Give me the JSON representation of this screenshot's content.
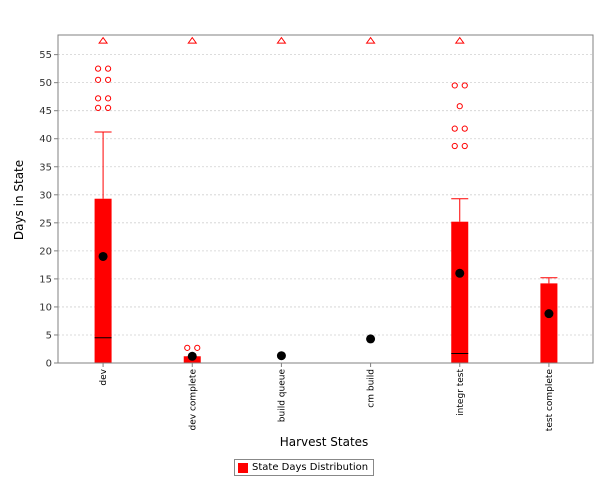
{
  "chart_data": {
    "type": "boxplot",
    "title": "",
    "xlabel": "Harvest States",
    "ylabel": "Days in State",
    "ylim": [
      0,
      58.5
    ],
    "yticks": [
      0,
      5,
      10,
      15,
      20,
      25,
      30,
      35,
      40,
      45,
      50,
      55
    ],
    "grid": true,
    "legend_position": "bottom",
    "colors": {
      "box": "#ff0000",
      "mean": "#000000",
      "outlier": "#ff0000",
      "grid": "#d0d0d0"
    },
    "categories": [
      "dev",
      "dev complete",
      "build queue",
      "cm build",
      "integr test",
      "test complete"
    ],
    "series": [
      {
        "name": "State Days Distribution",
        "boxes": [
          {
            "q1": 0,
            "median": 4.5,
            "q3": 29.3,
            "whisker_low": 0,
            "whisker_high": 41.2,
            "mean": 19,
            "outliers": [
              45.5,
              45.5,
              47.2,
              47.2,
              50.5,
              50.5,
              52.5,
              52.5
            ],
            "far_out": [
              57.5
            ]
          },
          {
            "q1": 0,
            "median": 0,
            "q3": 1.2,
            "whisker_low": 0,
            "whisker_high": 1.2,
            "mean": 1.2,
            "outliers": [
              2.7,
              2.7
            ],
            "far_out": [
              57.5
            ]
          },
          {
            "q1": 0,
            "median": 0,
            "q3": 0,
            "whisker_low": 0,
            "whisker_high": 0,
            "mean": 1.3,
            "outliers": [],
            "far_out": [
              57.5
            ]
          },
          {
            "q1": 0,
            "median": 0,
            "q3": 0,
            "whisker_low": 0,
            "whisker_high": 0,
            "mean": 4.3,
            "outliers": [],
            "far_out": [
              57.5
            ]
          },
          {
            "q1": 0,
            "median": 1.7,
            "q3": 25.2,
            "whisker_low": 0,
            "whisker_high": 29.3,
            "mean": 16,
            "outliers": [
              38.7,
              38.7,
              41.8,
              41.8,
              45.8,
              49.5,
              49.5
            ],
            "far_out": [
              57.5
            ]
          },
          {
            "q1": 0,
            "median": 14.2,
            "q3": 14.2,
            "whisker_low": 0,
            "whisker_high": 15.2,
            "mean": 8.8,
            "outliers": [],
            "far_out": []
          }
        ]
      }
    ]
  }
}
